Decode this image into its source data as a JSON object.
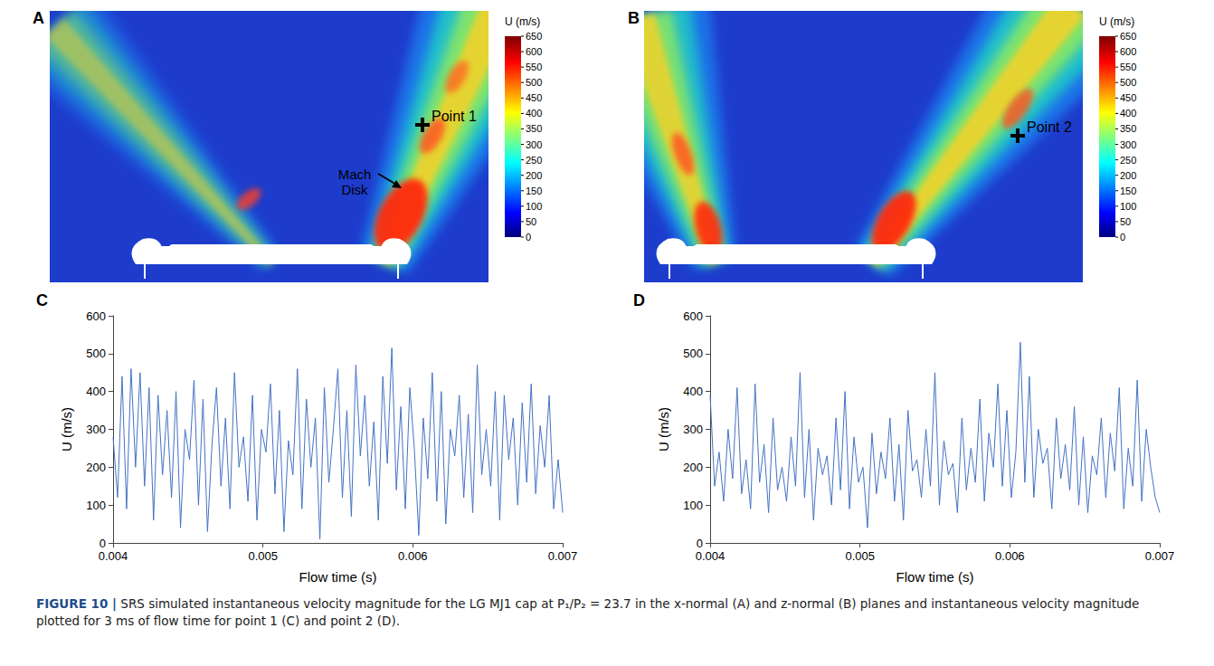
{
  "figure_label": "FIGURE 10 |",
  "caption": "SRS simulated instantaneous velocity magnitude for the LG MJ1 cap at P₁/P₂ = 23.7 in the x-normal (A) and z-normal (B) planes and instantaneous velocity magnitude plotted for 3 ms of flow time for point 1 (C) and point 2 (D).",
  "panels": [
    {
      "letter": "A",
      "type": "contour_image",
      "colorbar": {
        "title": "U (m/s)",
        "range": [
          0,
          650
        ],
        "ticks": [
          0,
          50,
          100,
          150,
          200,
          250,
          300,
          350,
          400,
          450,
          500,
          550,
          600,
          650
        ]
      },
      "annotations": [
        "Point 1",
        "Mach Disk"
      ]
    },
    {
      "letter": "B",
      "type": "contour_image",
      "colorbar": {
        "title": "U (m/s)",
        "range": [
          0,
          650
        ],
        "ticks": [
          0,
          50,
          100,
          150,
          200,
          250,
          300,
          350,
          400,
          450,
          500,
          550,
          600,
          650
        ]
      },
      "annotations": [
        "Point 2"
      ]
    }
  ],
  "chart_data": [
    {
      "letter": "C",
      "type": "line",
      "xlabel": "Flow time (s)",
      "ylabel": "U (m/s)",
      "color": "#4472c4",
      "grid": false,
      "xlim": [
        0.004,
        0.007
      ],
      "xticks": [
        0.004,
        0.005,
        0.006,
        0.007
      ],
      "ylim": [
        0,
        600
      ],
      "yticks": [
        0,
        100,
        200,
        300,
        400,
        500,
        600
      ],
      "x": [
        0.004,
        0.00403,
        0.00406,
        0.00409,
        0.00412,
        0.00415,
        0.00418,
        0.00421,
        0.00424,
        0.00427,
        0.0043,
        0.00433,
        0.00436,
        0.00439,
        0.00442,
        0.00445,
        0.00448,
        0.00451,
        0.00454,
        0.00457,
        0.0046,
        0.00463,
        0.00466,
        0.00469,
        0.00472,
        0.00475,
        0.00478,
        0.00481,
        0.00484,
        0.00487,
        0.0049,
        0.00493,
        0.00496,
        0.00499,
        0.00502,
        0.00505,
        0.00508,
        0.00511,
        0.00514,
        0.00517,
        0.0052,
        0.00523,
        0.00526,
        0.00529,
        0.00532,
        0.00535,
        0.00538,
        0.00541,
        0.00544,
        0.00547,
        0.0055,
        0.00553,
        0.00556,
        0.00559,
        0.00562,
        0.00565,
        0.00568,
        0.00571,
        0.00574,
        0.00577,
        0.0058,
        0.00583,
        0.00586,
        0.00589,
        0.00592,
        0.00595,
        0.00598,
        0.00601,
        0.00604,
        0.00607,
        0.0061,
        0.00613,
        0.00616,
        0.00619,
        0.00622,
        0.00625,
        0.00628,
        0.00631,
        0.00634,
        0.00637,
        0.0064,
        0.00643,
        0.00646,
        0.00649,
        0.00652,
        0.00655,
        0.00658,
        0.00661,
        0.00664,
        0.00667,
        0.0067,
        0.00673,
        0.00676,
        0.00679,
        0.00682,
        0.00685,
        0.00688,
        0.00691,
        0.00694,
        0.00697,
        0.007
      ],
      "values": [
        280,
        120,
        440,
        90,
        460,
        200,
        450,
        150,
        410,
        60,
        390,
        180,
        350,
        120,
        400,
        40,
        300,
        220,
        430,
        100,
        380,
        30,
        260,
        410,
        150,
        330,
        90,
        450,
        200,
        280,
        110,
        390,
        60,
        300,
        240,
        420,
        130,
        350,
        30,
        270,
        180,
        460,
        90,
        380,
        200,
        330,
        10,
        410,
        160,
        300,
        460,
        120,
        350,
        70,
        470,
        230,
        390,
        150,
        320,
        60,
        440,
        210,
        515,
        140,
        360,
        90,
        410,
        250,
        20,
        330,
        170,
        450,
        110,
        400,
        50,
        300,
        230,
        390,
        120,
        340,
        80,
        470,
        180,
        300,
        150,
        400,
        60,
        390,
        220,
        330,
        100,
        370,
        160,
        420,
        130,
        310,
        200,
        390,
        90,
        220,
        80
      ]
    },
    {
      "letter": "D",
      "type": "line",
      "xlabel": "Flow time (s)",
      "ylabel": "U (m/s)",
      "color": "#4472c4",
      "grid": false,
      "xlim": [
        0.004,
        0.007
      ],
      "xticks": [
        0.004,
        0.005,
        0.006,
        0.007
      ],
      "ylim": [
        0,
        600
      ],
      "yticks": [
        0,
        100,
        200,
        300,
        400,
        500,
        600
      ],
      "x": [
        0.004,
        0.00403,
        0.00406,
        0.00409,
        0.00412,
        0.00415,
        0.00418,
        0.00421,
        0.00424,
        0.00427,
        0.0043,
        0.00433,
        0.00436,
        0.00439,
        0.00442,
        0.00445,
        0.00448,
        0.00451,
        0.00454,
        0.00457,
        0.0046,
        0.00463,
        0.00466,
        0.00469,
        0.00472,
        0.00475,
        0.00478,
        0.00481,
        0.00484,
        0.00487,
        0.0049,
        0.00493,
        0.00496,
        0.00499,
        0.00502,
        0.00505,
        0.00508,
        0.00511,
        0.00514,
        0.00517,
        0.0052,
        0.00523,
        0.00526,
        0.00529,
        0.00532,
        0.00535,
        0.00538,
        0.00541,
        0.00544,
        0.00547,
        0.0055,
        0.00553,
        0.00556,
        0.00559,
        0.00562,
        0.00565,
        0.00568,
        0.00571,
        0.00574,
        0.00577,
        0.0058,
        0.00583,
        0.00586,
        0.00589,
        0.00592,
        0.00595,
        0.00598,
        0.00601,
        0.00604,
        0.00607,
        0.0061,
        0.00613,
        0.00616,
        0.00619,
        0.00622,
        0.00625,
        0.00628,
        0.00631,
        0.00634,
        0.00637,
        0.0064,
        0.00643,
        0.00646,
        0.00649,
        0.00652,
        0.00655,
        0.00658,
        0.00661,
        0.00664,
        0.00667,
        0.0067,
        0.00673,
        0.00676,
        0.00679,
        0.00682,
        0.00685,
        0.00688,
        0.00691,
        0.00694,
        0.00697,
        0.007
      ],
      "values": [
        390,
        150,
        240,
        110,
        300,
        170,
        410,
        130,
        220,
        90,
        420,
        160,
        260,
        80,
        330,
        140,
        200,
        110,
        280,
        150,
        450,
        120,
        300,
        60,
        250,
        180,
        230,
        100,
        330,
        140,
        400,
        90,
        280,
        160,
        200,
        40,
        290,
        130,
        240,
        170,
        330,
        110,
        260,
        60,
        350,
        190,
        220,
        120,
        300,
        150,
        450,
        100,
        270,
        180,
        210,
        80,
        330,
        140,
        250,
        160,
        380,
        110,
        290,
        200,
        420,
        150,
        350,
        120,
        240,
        530,
        160,
        440,
        120,
        300,
        210,
        250,
        90,
        330,
        170,
        260,
        140,
        360,
        100,
        280,
        80,
        230,
        180,
        330,
        120,
        290,
        190,
        410,
        90,
        250,
        150,
        430,
        110,
        300,
        200,
        120,
        80
      ]
    }
  ]
}
